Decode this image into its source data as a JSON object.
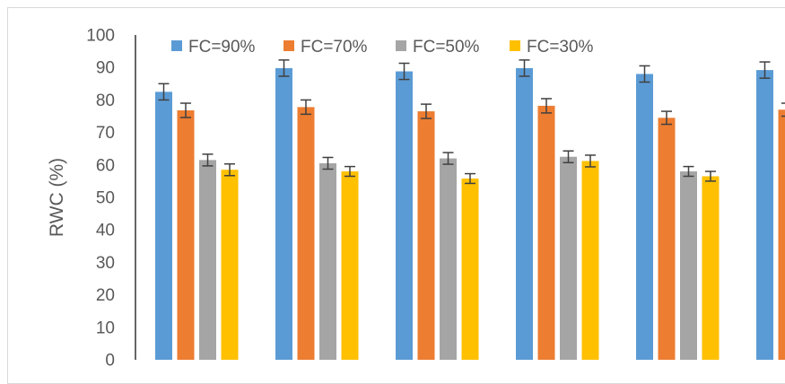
{
  "chart_data": {
    "type": "bar",
    "title": "",
    "xlabel": "",
    "ylabel": "RWC (%)",
    "ylim": [
      0,
      100
    ],
    "yticks": [
      0,
      10,
      20,
      30,
      40,
      50,
      60,
      70,
      80,
      90,
      100
    ],
    "categories": [
      "",
      "",
      "",
      "",
      "",
      ""
    ],
    "grid": false,
    "legend_position": "top",
    "series": [
      {
        "name": "FC=90%",
        "color": "#5B9BD5",
        "values": [
          82.5,
          89.8,
          88.8,
          89.8,
          88.0,
          89.2
        ],
        "errors": [
          2.5,
          2.5,
          2.5,
          2.5,
          2.5,
          2.5
        ]
      },
      {
        "name": "FC=70%",
        "color": "#ED7D31",
        "values": [
          76.8,
          77.8,
          76.5,
          78.2,
          74.5,
          77.0
        ],
        "errors": [
          2.2,
          2.2,
          2.2,
          2.2,
          2.0,
          2.0
        ]
      },
      {
        "name": "FC=50%",
        "color": "#A5A5A5",
        "values": [
          61.5,
          60.5,
          62.0,
          62.5,
          58.0,
          null
        ],
        "errors": [
          1.8,
          1.8,
          1.8,
          1.8,
          1.5,
          null
        ]
      },
      {
        "name": "FC=30%",
        "color": "#FFC000",
        "values": [
          58.5,
          58.0,
          55.8,
          61.2,
          56.5,
          null
        ],
        "errors": [
          1.8,
          1.5,
          1.5,
          1.8,
          1.5,
          null
        ]
      }
    ]
  }
}
